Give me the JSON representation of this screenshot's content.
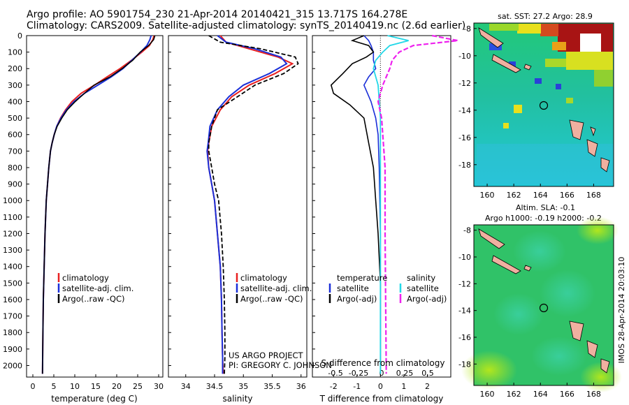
{
  "header": {
    "line1": "Argo profile: AO 5901754_230 21-Apr-2014 20140421_315 13.717S 164.278E",
    "line2": "Climatology: CARS2009. Satellite-adjusted climatology: synTS_20140419.nc (2.6d earlier)"
  },
  "colors": {
    "climatology": "#e82020",
    "satellite": "#1a2fd8",
    "argo": "#000000",
    "sal_satellite": "#22d8e8",
    "sal_argo": "#ee22ee"
  },
  "credit": {
    "line1": "US ARGO PROJECT",
    "line2": "PI: GREGORY C. JOHNSON"
  },
  "legends": {
    "temp": [
      "climatology",
      "satellite-adj. clim.",
      "Argo(..raw -QC)"
    ],
    "sal": [
      "climatology",
      "satellite-adj. clim.",
      "Argo(..raw -QC)"
    ],
    "diff_temp": {
      "title": "temperature",
      "items": [
        "satellite",
        "Argo(-adj)"
      ]
    },
    "diff_sal": {
      "title": "salinity",
      "items": [
        "satellite",
        "Argo(-adj)"
      ]
    }
  },
  "maps": {
    "top_title": "sat. SST: 27.2  Argo: 28.9",
    "bottom_title_1": "Altim. SLA: -0.1",
    "bottom_title_2": "Argo h1000: -0.19 h2000: -0.2",
    "x_ticks": [
      "160",
      "162",
      "164",
      "166",
      "168"
    ],
    "y_ticks": [
      "-8",
      "-10",
      "-12",
      "-14",
      "-16",
      "-18"
    ],
    "argo_position": {
      "lon": 164.278,
      "lat": -13.717
    },
    "side_label": "IMOS 28-Apr-2014 20:03:10"
  },
  "chart_data": [
    {
      "type": "line",
      "xlabel": "temperature (deg C)",
      "ylabel": "",
      "xlim": [
        -1.5,
        31
      ],
      "ylim": [
        2070,
        0
      ],
      "x_ticks": [
        "0",
        "5",
        "10",
        "15",
        "20",
        "25",
        "30"
      ],
      "y_ticks": [
        "0",
        "100",
        "200",
        "300",
        "400",
        "500",
        "600",
        "700",
        "800",
        "900",
        "1000",
        "1100",
        "1200",
        "1300",
        "1400",
        "1500",
        "1600",
        "1700",
        "1800",
        "1900",
        "2000"
      ],
      "series": [
        {
          "name": "climatology",
          "x": [
            28.9,
            28.6,
            27.8,
            26.0,
            23.5,
            20.8,
            17.7,
            14.7,
            11.5,
            9.3,
            7.8,
            6.6,
            5.7,
            5.1,
            4.6,
            4.2,
            3.8,
            3.5,
            3.2,
            2.9,
            2.7,
            2.5,
            2.4,
            2.3
          ],
          "y": [
            0,
            25,
            60,
            100,
            150,
            200,
            250,
            300,
            350,
            400,
            450,
            500,
            550,
            600,
            650,
            700,
            800,
            900,
            1000,
            1200,
            1400,
            1600,
            1800,
            2050
          ]
        },
        {
          "name": "satellite-adj. clim.",
          "x": [
            28.2,
            27.9,
            27.2,
            25.7,
            23.6,
            21.5,
            18.7,
            15.5,
            12.3,
            9.8,
            8.0,
            6.7,
            5.7,
            5.1,
            4.6,
            4.2,
            3.8,
            3.5,
            3.2,
            2.9,
            2.7,
            2.5,
            2.4,
            2.3
          ],
          "y": [
            0,
            25,
            60,
            100,
            150,
            200,
            250,
            300,
            350,
            400,
            450,
            500,
            550,
            600,
            650,
            700,
            800,
            900,
            1000,
            1200,
            1400,
            1600,
            1800,
            2050
          ]
        },
        {
          "name": "Argo(..raw -QC)",
          "x": [
            29.1,
            28.8,
            27.6,
            25.6,
            23.8,
            21.3,
            18.4,
            14.6,
            12.3,
            10.1,
            8.2,
            6.9,
            5.8,
            5.1,
            4.6,
            4.2,
            3.8,
            3.5,
            3.2,
            2.9,
            2.7,
            2.5,
            2.4,
            2.3
          ],
          "y": [
            0,
            25,
            60,
            100,
            150,
            200,
            250,
            300,
            350,
            400,
            450,
            500,
            550,
            600,
            650,
            700,
            800,
            900,
            1000,
            1200,
            1400,
            1600,
            1800,
            2050
          ]
        }
      ]
    },
    {
      "type": "line",
      "xlabel": "salinity",
      "ylabel": "",
      "xlim": [
        33.7,
        36.1
      ],
      "ylim": [
        2070,
        0
      ],
      "x_ticks": [
        "34",
        "34.5",
        "35",
        "35.5",
        "36"
      ],
      "series": [
        {
          "name": "climatology",
          "x": [
            34.6,
            34.7,
            35.1,
            35.6,
            35.85,
            35.55,
            35.1,
            34.8,
            34.6,
            34.45,
            34.4,
            34.38,
            34.4,
            34.45,
            34.5,
            34.55,
            34.6,
            34.62,
            34.63,
            34.64,
            34.65
          ],
          "y": [
            0,
            40,
            80,
            130,
            170,
            230,
            300,
            370,
            450,
            550,
            650,
            700,
            800,
            900,
            1000,
            1200,
            1400,
            1600,
            1800,
            1950,
            2050
          ]
        },
        {
          "name": "satellite-adj. clim.",
          "x": [
            34.55,
            34.7,
            35.2,
            35.65,
            35.75,
            35.45,
            35.0,
            34.75,
            34.55,
            34.42,
            34.39,
            34.37,
            34.4,
            34.45,
            34.5,
            34.55,
            34.6,
            34.62,
            34.63,
            34.64,
            34.64
          ],
          "y": [
            0,
            40,
            80,
            130,
            170,
            230,
            300,
            370,
            450,
            550,
            650,
            700,
            800,
            900,
            1000,
            1200,
            1400,
            1600,
            1800,
            1950,
            2050
          ]
        },
        {
          "name": "Argo(..raw -QC)",
          "x": [
            34.4,
            34.6,
            35.3,
            35.9,
            35.95,
            35.7,
            35.2,
            34.9,
            34.55,
            34.45,
            34.4,
            34.4,
            34.45,
            34.5,
            34.57,
            34.62,
            34.65,
            34.67,
            34.68,
            34.68,
            34.67
          ],
          "y": [
            0,
            40,
            80,
            130,
            170,
            230,
            300,
            370,
            450,
            550,
            650,
            700,
            800,
            900,
            1000,
            1200,
            1400,
            1600,
            1800,
            1950,
            2050
          ]
        }
      ]
    },
    {
      "type": "line",
      "xlabel": "T difference from climatology",
      "ylabel": "",
      "title": "S difference from climatology",
      "xlim": [
        -2.9,
        3.0
      ],
      "ylim": [
        2070,
        0
      ],
      "x_ticks": [
        "-2",
        "-1",
        "0",
        "1",
        "2"
      ],
      "top_x_ticks": [
        "-0.5",
        "-0.25",
        "0",
        "0.25",
        "0.5"
      ],
      "series": [
        {
          "name": "temperature satellite",
          "x": [
            -0.7,
            -0.5,
            -0.4,
            -0.3,
            -0.3,
            -0.2,
            -0.5,
            -0.7,
            -0.4,
            -0.2,
            -0.1,
            -0.05,
            0,
            0
          ],
          "y": [
            0,
            30,
            60,
            100,
            150,
            200,
            250,
            300,
            400,
            500,
            600,
            800,
            1200,
            2050
          ]
        },
        {
          "name": "temperature Argo(-adj)",
          "x": [
            -0.7,
            -1.2,
            -0.5,
            -0.3,
            -0.6,
            -1.2,
            -1.6,
            -2.1,
            -2.0,
            -1.3,
            -0.7,
            -0.5,
            -0.3,
            -0.2,
            -0.1,
            0,
            0
          ],
          "y": [
            0,
            30,
            60,
            100,
            130,
            170,
            230,
            300,
            350,
            420,
            500,
            650,
            800,
            1000,
            1200,
            1500,
            2050
          ]
        },
        {
          "name": "salinity satellite",
          "x": [
            0.3,
            1.2,
            0.4,
            0.1,
            -0.2,
            -0.3,
            -0.1,
            0,
            0,
            0
          ],
          "y": [
            0,
            30,
            60,
            100,
            150,
            200,
            300,
            500,
            800,
            2050
          ]
        },
        {
          "name": "salinity Argo(-adj)",
          "x": [
            2.2,
            3.3,
            1.4,
            0.8,
            0.5,
            0.4,
            0.1,
            -0.1,
            0.05,
            0.2,
            0.2,
            0.25
          ],
          "y": [
            0,
            30,
            60,
            100,
            150,
            200,
            300,
            400,
            500,
            800,
            1200,
            2050
          ]
        }
      ]
    }
  ]
}
